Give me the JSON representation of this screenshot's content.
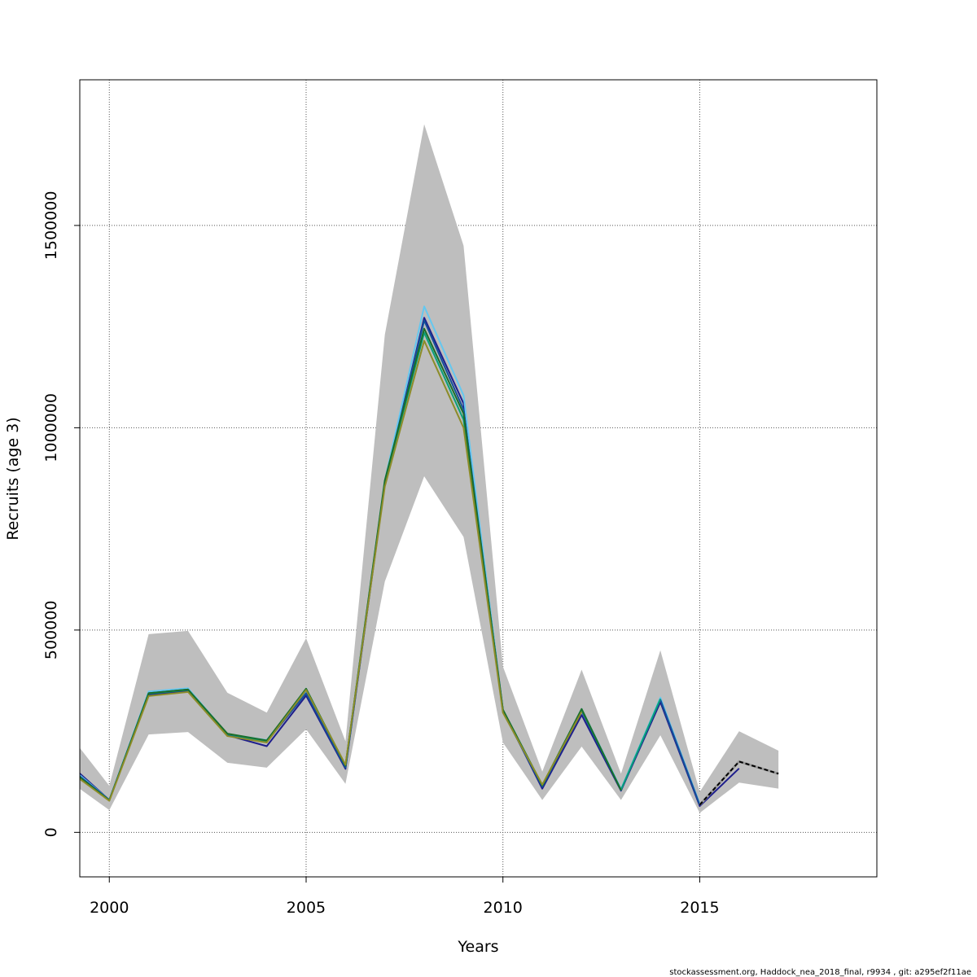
{
  "chart_data": {
    "type": "line",
    "title": "",
    "xlabel": "Years",
    "ylabel": "Recruits (age 3)",
    "xlim": [
      1999.25,
      2019.5
    ],
    "ylim": [
      -110000,
      1860000
    ],
    "x_ticks": [
      2000,
      2005,
      2010,
      2015
    ],
    "x_tick_labels": [
      "2000",
      "2005",
      "2010",
      "2015"
    ],
    "y_ticks": [
      0,
      500000,
      1000000,
      1500000
    ],
    "y_tick_labels": [
      "0",
      "500000",
      "1000000",
      "1500000"
    ],
    "grid": true,
    "legend": "none",
    "confidence_band": {
      "x": [
        1999,
        2000,
        2001,
        2002,
        2003,
        2004,
        2005,
        2006,
        2007,
        2008,
        2009,
        2010,
        2011,
        2012,
        2013,
        2014,
        2015,
        2016,
        2017
      ],
      "upper": [
        240000,
        115000,
        490000,
        498000,
        345000,
        296000,
        480000,
        225000,
        1230000,
        1750000,
        1450000,
        410000,
        150000,
        402000,
        145000,
        450000,
        100000,
        250000,
        202000
      ],
      "lower": [
        125000,
        55000,
        242000,
        248000,
        172000,
        160000,
        255000,
        120000,
        620000,
        880000,
        730000,
        222000,
        80000,
        212000,
        80000,
        240000,
        48000,
        123000,
        108000
      ],
      "color": "#bebebe"
    },
    "series": [
      {
        "color": "#1e1e8c",
        "x": [
          1999,
          2000,
          2001,
          2002,
          2003,
          2004,
          2005,
          2006,
          2007,
          2008,
          2009,
          2010,
          2011,
          2012,
          2013,
          2014,
          2015,
          2016
        ],
        "values": [
          167000,
          80000,
          340000,
          350000,
          240000,
          213000,
          338000,
          157000,
          862000,
          1272000,
          1060000,
          302000,
          108000,
          290000,
          103000,
          322000,
          65000,
          158000
        ]
      },
      {
        "color": "#64c8f0",
        "x": [
          1999,
          2000,
          2001,
          2002,
          2003,
          2004,
          2005,
          2006,
          2007,
          2008,
          2009,
          2010,
          2011,
          2012,
          2013,
          2014,
          2015
        ],
        "values": [
          162000,
          80000,
          348000,
          356000,
          243000,
          228000,
          348000,
          162000,
          870000,
          1300000,
          1080000,
          300000,
          115000,
          305000,
          107000,
          333000,
          70000
        ]
      },
      {
        "color": "#14509a",
        "x": [
          1999,
          2000,
          2001,
          2002,
          2003,
          2004,
          2005,
          2006,
          2007,
          2008,
          2009,
          2010,
          2011,
          2012,
          2013,
          2014,
          2015
        ],
        "values": [
          158000,
          80000,
          344000,
          353000,
          242000,
          224000,
          344000,
          160000,
          864000,
          1265000,
          1045000,
          298000,
          113000,
          300000,
          105000,
          328000,
          68000
        ]
      },
      {
        "color": "#0aa07a",
        "x": [
          1999,
          2000,
          2001,
          2002,
          2003,
          2004,
          2005,
          2006,
          2007,
          2008,
          2009,
          2010,
          2011,
          2012,
          2013,
          2014
        ],
        "values": [
          154000,
          79000,
          343000,
          352000,
          243000,
          225000,
          355000,
          165000,
          866000,
          1235000,
          1020000,
          303000,
          116000,
          303000,
          105000,
          330000
        ]
      },
      {
        "color": "#1a6e2a",
        "x": [
          1999,
          2000,
          2001,
          2002,
          2003,
          2004,
          2005,
          2006,
          2007,
          2008,
          2009,
          2010,
          2011,
          2012,
          2013
        ],
        "values": [
          155000,
          79000,
          344000,
          353000,
          244000,
          227000,
          355000,
          165000,
          870000,
          1245000,
          1035000,
          303000,
          116000,
          305000,
          104000
        ]
      },
      {
        "color": "#8c8c28",
        "x": [
          1999,
          2000,
          2001,
          2002,
          2003,
          2004,
          2005,
          2006,
          2007,
          2008,
          2009,
          2010,
          2011,
          2012
        ],
        "values": [
          150000,
          78000,
          337000,
          347000,
          238000,
          222000,
          352000,
          167000,
          855000,
          1215000,
          1000000,
          296000,
          118000,
          298000
        ]
      },
      {
        "color": "#000000",
        "dashed": true,
        "x": [
          2015,
          2016,
          2017
        ],
        "values": [
          68000,
          175000,
          145000
        ]
      }
    ]
  },
  "footer": "stockassessment.org, Haddock_nea_2018_final, r9934 , git: a295ef2f11ae"
}
